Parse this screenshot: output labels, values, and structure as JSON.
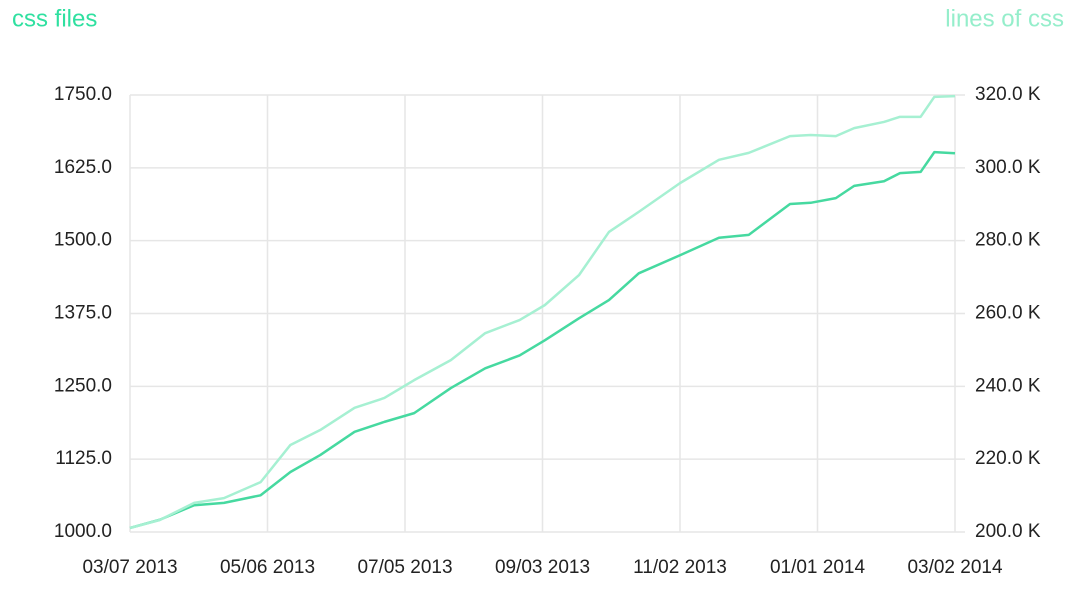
{
  "chart_data": {
    "type": "line",
    "title_left": "css files",
    "title_right": "lines of css",
    "x": [
      0,
      13,
      28,
      41,
      57,
      70,
      83,
      98,
      111,
      124,
      140,
      155,
      170,
      181,
      196,
      209,
      222,
      240,
      257,
      270,
      288,
      297,
      308,
      316,
      329,
      336,
      345,
      351,
      360
    ],
    "xlim": [
      0,
      360
    ],
    "xticks": [
      {
        "value": 0,
        "label": "03/07 2013"
      },
      {
        "value": 60,
        "label": "05/06 2013"
      },
      {
        "value": 120,
        "label": "07/05 2013"
      },
      {
        "value": 180,
        "label": "09/03 2013"
      },
      {
        "value": 240,
        "label": "11/02 2013"
      },
      {
        "value": 300,
        "label": "01/01 2014"
      },
      {
        "value": 360,
        "label": "03/02 2014"
      }
    ],
    "ylim": [
      1000,
      1750
    ],
    "yticks": [
      {
        "value": 1000,
        "label": "1000.0"
      },
      {
        "value": 1125,
        "label": "1125.0"
      },
      {
        "value": 1250,
        "label": "1250.0"
      },
      {
        "value": 1375,
        "label": "1375.0"
      },
      {
        "value": 1500,
        "label": "1500.0"
      },
      {
        "value": 1625,
        "label": "1625.0"
      },
      {
        "value": 1750,
        "label": "1750.0"
      }
    ],
    "y2lim": [
      200000,
      320000
    ],
    "y2ticks": [
      {
        "value": 200000,
        "label": "200.0 K"
      },
      {
        "value": 220000,
        "label": "220.0 K"
      },
      {
        "value": 240000,
        "label": "240.0 K"
      },
      {
        "value": 260000,
        "label": "260.0 K"
      },
      {
        "value": 280000,
        "label": "280.0 K"
      },
      {
        "value": 300000,
        "label": "300.0 K"
      },
      {
        "value": 320000,
        "label": "320.0 K"
      }
    ],
    "grid": true,
    "series": [
      {
        "name": "css files",
        "color": "#46d9a0",
        "axis": "y",
        "values": [
          1007,
          1021,
          1046,
          1050,
          1063,
          1103,
          1132,
          1172,
          1189,
          1204,
          1247,
          1281,
          1303,
          1329,
          1367,
          1398,
          1444,
          1475,
          1505,
          1510,
          1563,
          1565,
          1573,
          1594,
          1602,
          1616,
          1618,
          1652,
          1650
        ]
      },
      {
        "name": "lines of css",
        "color": "#a6f0d2",
        "axis": "y2",
        "values": [
          201100,
          203300,
          208000,
          209300,
          213700,
          223900,
          228000,
          234100,
          236800,
          241700,
          247200,
          254600,
          258200,
          262300,
          270600,
          282400,
          287900,
          295800,
          302200,
          304100,
          308700,
          309000,
          308700,
          310900,
          312600,
          314000,
          314000,
          319500,
          319700
        ]
      }
    ]
  }
}
